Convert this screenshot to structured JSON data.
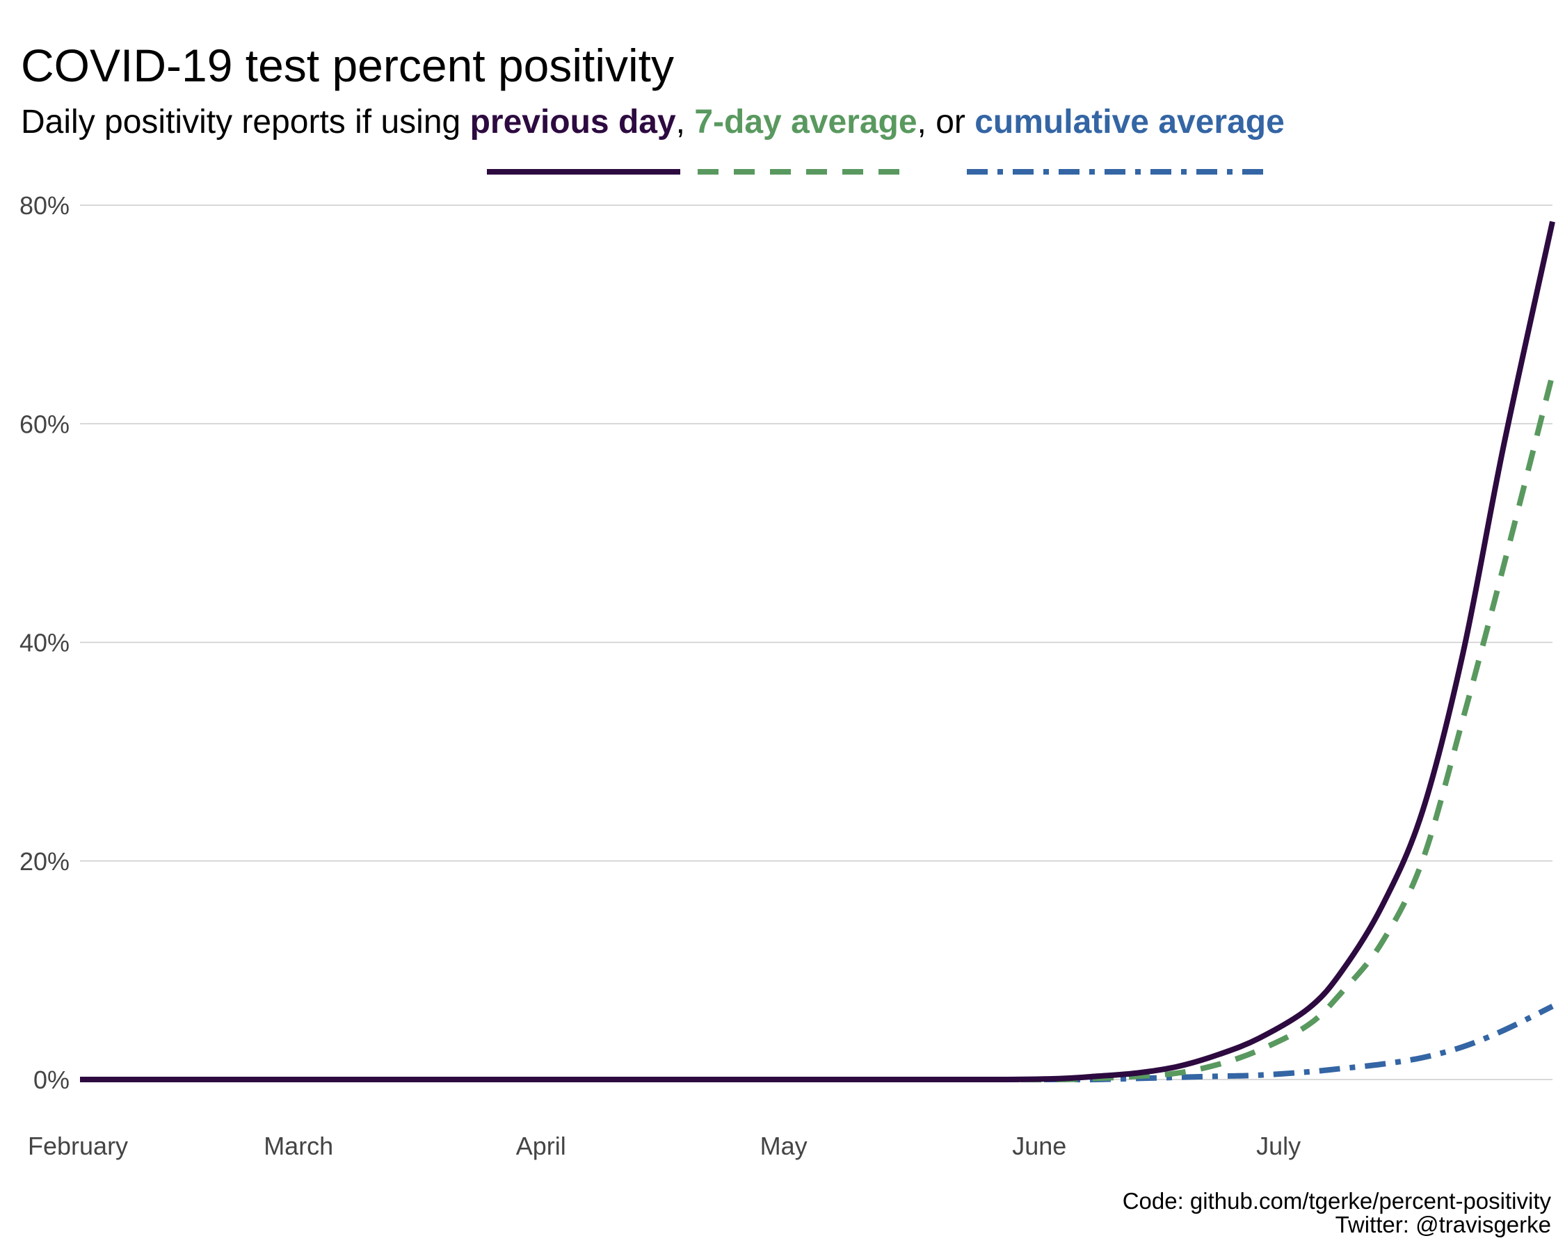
{
  "chart_data": {
    "type": "line",
    "title": "COVID-19 test percent positivity",
    "subtitle": {
      "prefix": "Daily positivity reports if using ",
      "sep1": ", ",
      "sep2": ", or "
    },
    "xlabel": "",
    "ylabel": "",
    "x_ticks": [
      "February",
      "March",
      "April",
      "May",
      "June",
      "July"
    ],
    "y_ticks": [
      "0%",
      "20%",
      "40%",
      "60%",
      "80%"
    ],
    "ylim": [
      0,
      80
    ],
    "legend_placement": "under subtitle",
    "grid": "horizontal major gridlines",
    "x": [
      "Feb 1",
      "Feb 15",
      "Mar 1",
      "Mar 15",
      "Apr 1",
      "Apr 15",
      "May 1",
      "May 15",
      "May 25",
      "Jun 1",
      "Jun 5",
      "Jun 10",
      "Jun 15",
      "Jun 20",
      "Jun 25",
      "Jul 1",
      "Jul 5",
      "Jul 10",
      "Jul 15",
      "Jul 20",
      "Jul 25",
      "Jul 31"
    ],
    "series": [
      {
        "name": "previous day",
        "color": "#2d0a40",
        "dash": "solid",
        "values": [
          0.0,
          0.0,
          0.0,
          0.0,
          0.0,
          0.0,
          0.0,
          0.0,
          0.0,
          0.1,
          0.3,
          0.6,
          1.2,
          2.3,
          3.8,
          6.5,
          9.8,
          15.8,
          24.5,
          39.0,
          58.0,
          78.5
        ]
      },
      {
        "name": "7-day average",
        "color": "#59995f",
        "dash": "dashed",
        "values": [
          0.0,
          0.0,
          0.0,
          0.0,
          0.0,
          0.0,
          0.0,
          0.0,
          0.0,
          0.0,
          0.1,
          0.3,
          0.6,
          1.4,
          2.7,
          5.0,
          7.9,
          12.5,
          20.0,
          33.0,
          47.0,
          64.5
        ]
      },
      {
        "name": "cumulative average",
        "color": "#3465a4",
        "dash": "dotdash",
        "values": [
          0.0,
          0.0,
          0.0,
          0.0,
          0.0,
          0.0,
          0.0,
          0.0,
          0.0,
          0.0,
          0.0,
          0.1,
          0.2,
          0.3,
          0.4,
          0.7,
          1.0,
          1.4,
          2.0,
          3.0,
          4.5,
          6.7
        ]
      }
    ]
  },
  "caption": {
    "line1": "Code: github.com/tgerke/percent-positivity",
    "line2": "Twitter: @travisgerke"
  }
}
